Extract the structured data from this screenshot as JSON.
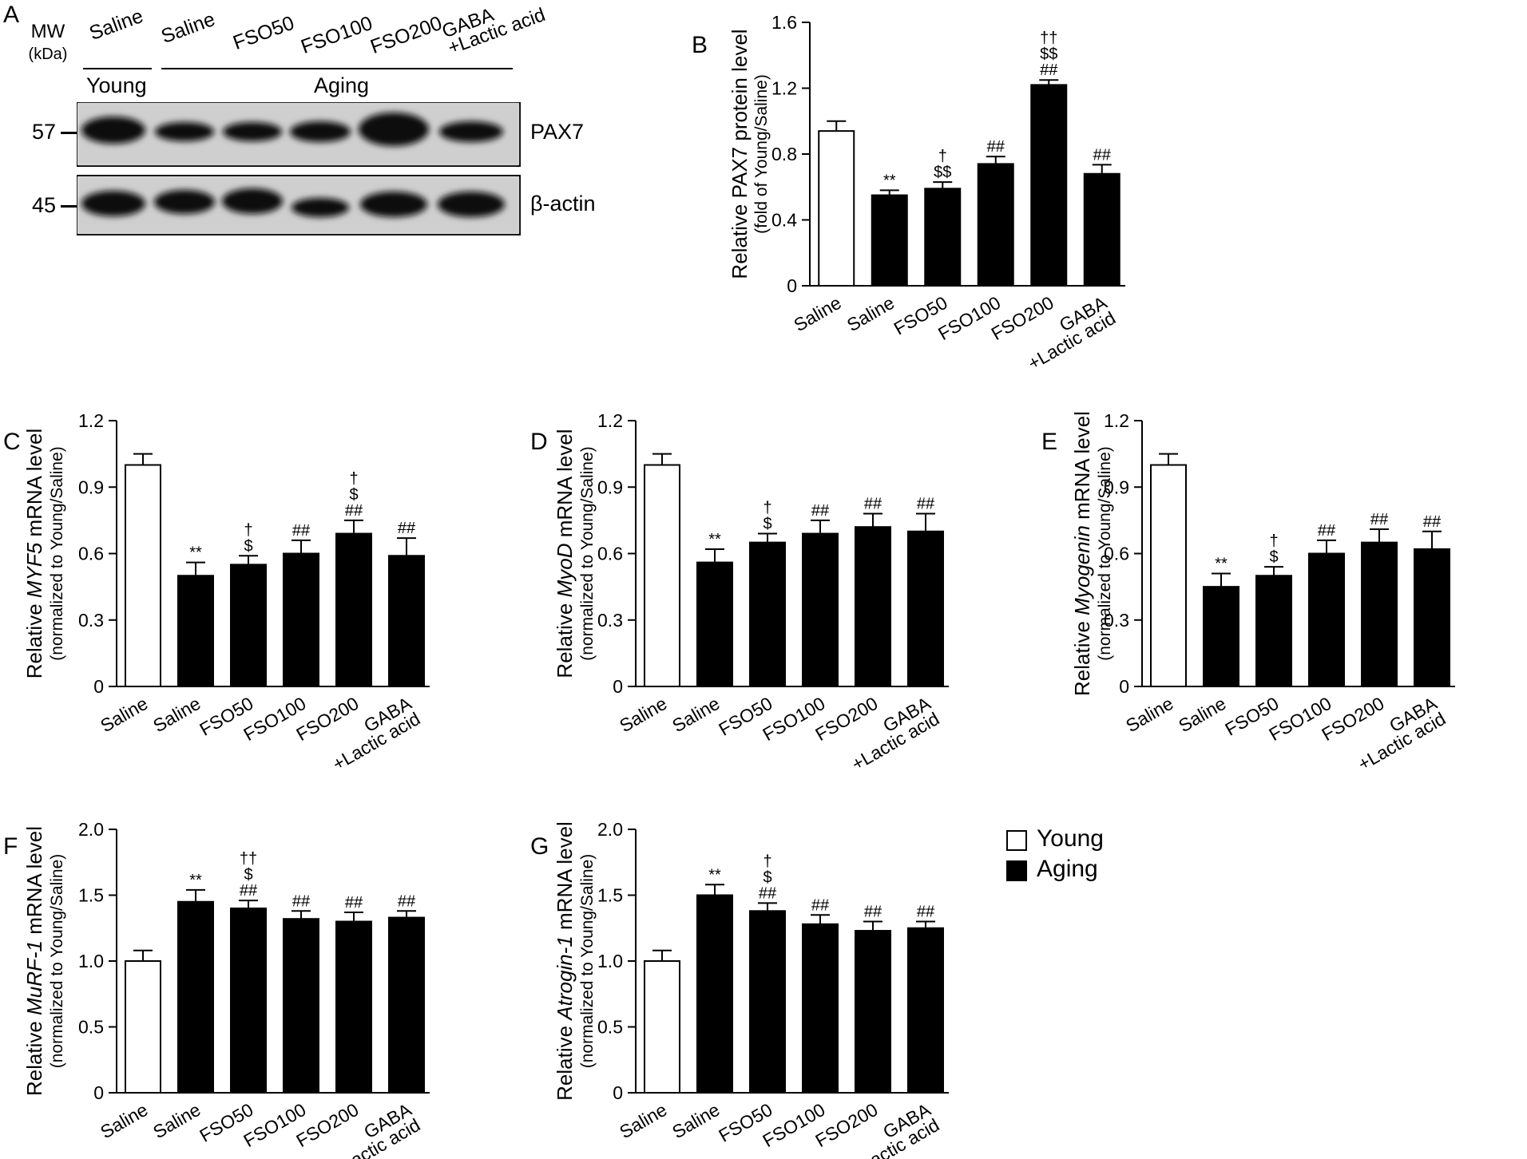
{
  "western_blot": {
    "panel_letter": "A",
    "mw_label": "MW",
    "mw_unit": "(kDa)",
    "lanes": [
      {
        "label": "Saline"
      },
      {
        "label": "Saline"
      },
      {
        "label": "FSO50"
      },
      {
        "label": "FSO100"
      },
      {
        "label": "FSO200"
      },
      {
        "label": "GABA",
        "label2": "+Lactic acid"
      }
    ],
    "groups": [
      "Young",
      "Aging"
    ],
    "bands": [
      {
        "marker": "57",
        "name": "PAX7"
      },
      {
        "marker": "45",
        "name": "β-actin"
      }
    ]
  },
  "legend": {
    "items": [
      {
        "label": "Young",
        "color": "#ffffff"
      },
      {
        "label": "Aging",
        "color": "#000000"
      }
    ]
  },
  "chart_data": [
    {
      "panel": "B",
      "type": "bar",
      "ylabel_parts": [
        {
          "t": "Relative PAX7 protein level",
          "i": false
        }
      ],
      "ylabel2": "(fold of Young/Saline)",
      "categories": [
        "Saline",
        "Saline",
        "FSO50",
        "FSO100",
        "FSO200",
        "GABA\n+Lactic acid"
      ],
      "groups": [
        "Young",
        "Aging",
        "Aging",
        "Aging",
        "Aging",
        "Aging"
      ],
      "values": [
        0.94,
        0.55,
        0.59,
        0.74,
        1.22,
        0.68
      ],
      "errors": [
        0.06,
        0.03,
        0.04,
        0.045,
        0.03,
        0.055
      ],
      "annotations": [
        [],
        [
          "**"
        ],
        [
          "†",
          "$$"
        ],
        [
          "##"
        ],
        [
          "††",
          "$$",
          "##"
        ],
        [
          "##"
        ]
      ],
      "ylim": [
        0,
        1.6
      ],
      "yticks": [
        "0",
        "0.4",
        "0.8",
        "1.2",
        "1.6"
      ]
    },
    {
      "panel": "C",
      "type": "bar",
      "ylabel_parts": [
        {
          "t": "Relative ",
          "i": false
        },
        {
          "t": "MYF5",
          "i": true
        },
        {
          "t": " mRNA level",
          "i": false
        }
      ],
      "ylabel2": "(normalized to Young/Saline)",
      "categories": [
        "Saline",
        "Saline",
        "FSO50",
        "FSO100",
        "FSO200",
        "GABA\n+Lactic acid"
      ],
      "groups": [
        "Young",
        "Aging",
        "Aging",
        "Aging",
        "Aging",
        "Aging"
      ],
      "values": [
        1.0,
        0.5,
        0.55,
        0.6,
        0.69,
        0.59
      ],
      "errors": [
        0.05,
        0.06,
        0.04,
        0.06,
        0.06,
        0.08
      ],
      "annotations": [
        [],
        [
          "**"
        ],
        [
          "†",
          "$"
        ],
        [
          "##"
        ],
        [
          "†",
          "$",
          "##"
        ],
        [
          "##"
        ]
      ],
      "ylim": [
        0,
        1.2
      ],
      "yticks": [
        "0",
        "0.3",
        "0.6",
        "0.9",
        "1.2"
      ]
    },
    {
      "panel": "D",
      "type": "bar",
      "ylabel_parts": [
        {
          "t": "Relative ",
          "i": false
        },
        {
          "t": "MyoD",
          "i": true
        },
        {
          "t": " mRNA level",
          "i": false
        }
      ],
      "ylabel2": "(normalized to Young/Saline)",
      "categories": [
        "Saline",
        "Saline",
        "FSO50",
        "FSO100",
        "FSO200",
        "GABA\n+Lactic acid"
      ],
      "groups": [
        "Young",
        "Aging",
        "Aging",
        "Aging",
        "Aging",
        "Aging"
      ],
      "values": [
        1.0,
        0.56,
        0.65,
        0.69,
        0.72,
        0.7
      ],
      "errors": [
        0.05,
        0.06,
        0.04,
        0.06,
        0.06,
        0.08
      ],
      "annotations": [
        [],
        [
          "**"
        ],
        [
          "†",
          "$"
        ],
        [
          "##"
        ],
        [
          "##"
        ],
        [
          "##"
        ]
      ],
      "ylim": [
        0,
        1.2
      ],
      "yticks": [
        "0",
        "0.3",
        "0.6",
        "0.9",
        "1.2"
      ]
    },
    {
      "panel": "E",
      "type": "bar",
      "ylabel_parts": [
        {
          "t": "Relative ",
          "i": false
        },
        {
          "t": "Myogenin",
          "i": true
        },
        {
          "t": " mRNA level",
          "i": false
        }
      ],
      "ylabel2": "(normalized to Young/Saline)",
      "categories": [
        "Saline",
        "Saline",
        "FSO50",
        "FSO100",
        "FSO200",
        "GABA\n+Lactic acid"
      ],
      "groups": [
        "Young",
        "Aging",
        "Aging",
        "Aging",
        "Aging",
        "Aging"
      ],
      "values": [
        1.0,
        0.45,
        0.5,
        0.6,
        0.65,
        0.62
      ],
      "errors": [
        0.05,
        0.06,
        0.04,
        0.06,
        0.06,
        0.08
      ],
      "annotations": [
        [],
        [
          "**"
        ],
        [
          "†",
          "$"
        ],
        [
          "##"
        ],
        [
          "##"
        ],
        [
          "##"
        ]
      ],
      "ylim": [
        0,
        1.2
      ],
      "yticks": [
        "0",
        "0.3",
        "0.6",
        "0.9",
        "1.2"
      ]
    },
    {
      "panel": "F",
      "type": "bar",
      "ylabel_parts": [
        {
          "t": "Relative ",
          "i": false
        },
        {
          "t": "MuRF-1",
          "i": true
        },
        {
          "t": " mRNA level",
          "i": false
        }
      ],
      "ylabel2": "(normalized to Young/Saline)",
      "categories": [
        "Saline",
        "Saline",
        "FSO50",
        "FSO100",
        "FSO200",
        "GABA\n+Lactic acid"
      ],
      "groups": [
        "Young",
        "Aging",
        "Aging",
        "Aging",
        "Aging",
        "Aging"
      ],
      "values": [
        1.0,
        1.45,
        1.4,
        1.32,
        1.3,
        1.33
      ],
      "errors": [
        0.08,
        0.09,
        0.06,
        0.06,
        0.07,
        0.05
      ],
      "annotations": [
        [],
        [
          "**"
        ],
        [
          "††",
          "$",
          "##"
        ],
        [
          "##"
        ],
        [
          "##"
        ],
        [
          "##"
        ]
      ],
      "ylim": [
        0,
        2.0
      ],
      "yticks": [
        "0",
        "0.5",
        "1.0",
        "1.5",
        "2.0"
      ]
    },
    {
      "panel": "G",
      "type": "bar",
      "ylabel_parts": [
        {
          "t": "Relative ",
          "i": false
        },
        {
          "t": "Atrogin-1",
          "i": true
        },
        {
          "t": " mRNA level",
          "i": false
        }
      ],
      "ylabel2": "(normalized to Young/Saline)",
      "categories": [
        "Saline",
        "Saline",
        "FSO50",
        "FSO100",
        "FSO200",
        "GABA\n+Lactic acid"
      ],
      "groups": [
        "Young",
        "Aging",
        "Aging",
        "Aging",
        "Aging",
        "Aging"
      ],
      "values": [
        1.0,
        1.5,
        1.38,
        1.28,
        1.23,
        1.25
      ],
      "errors": [
        0.08,
        0.08,
        0.06,
        0.07,
        0.07,
        0.05
      ],
      "annotations": [
        [],
        [
          "**"
        ],
        [
          "†",
          "$",
          "##"
        ],
        [
          "##"
        ],
        [
          "##"
        ],
        [
          "##"
        ]
      ],
      "ylim": [
        0,
        2.0
      ],
      "yticks": [
        "0",
        "0.5",
        "1.0",
        "1.5",
        "2.0"
      ]
    }
  ]
}
